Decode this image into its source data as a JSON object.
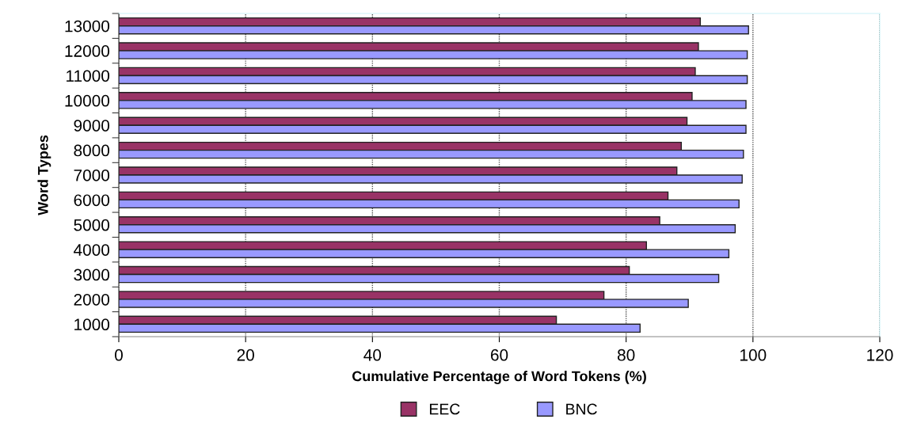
{
  "chart_data": {
    "type": "bar",
    "orientation": "horizontal",
    "xlabel": "Cumulative Percentage of Word Tokens (%)",
    "ylabel": "Word Types",
    "categories": [
      "13000",
      "12000",
      "11000",
      "10000",
      "9000",
      "8000",
      "7000",
      "6000",
      "5000",
      "4000",
      "3000",
      "2000",
      "1000"
    ],
    "series": [
      {
        "name": "EEC",
        "color": "#993366",
        "values": [
          91.7,
          91.4,
          90.9,
          90.4,
          89.6,
          88.7,
          88.0,
          86.6,
          85.3,
          83.2,
          80.5,
          76.5,
          69.0
        ]
      },
      {
        "name": "BNC",
        "color": "#9999ff",
        "values": [
          99.3,
          99.1,
          99.1,
          98.9,
          98.9,
          98.5,
          98.3,
          97.8,
          97.2,
          96.2,
          94.6,
          89.8,
          82.2
        ]
      }
    ],
    "xlim": [
      0,
      120
    ],
    "xticks": [
      0,
      20,
      40,
      60,
      80,
      100,
      120
    ],
    "grid": "x",
    "legend": "bottom"
  }
}
